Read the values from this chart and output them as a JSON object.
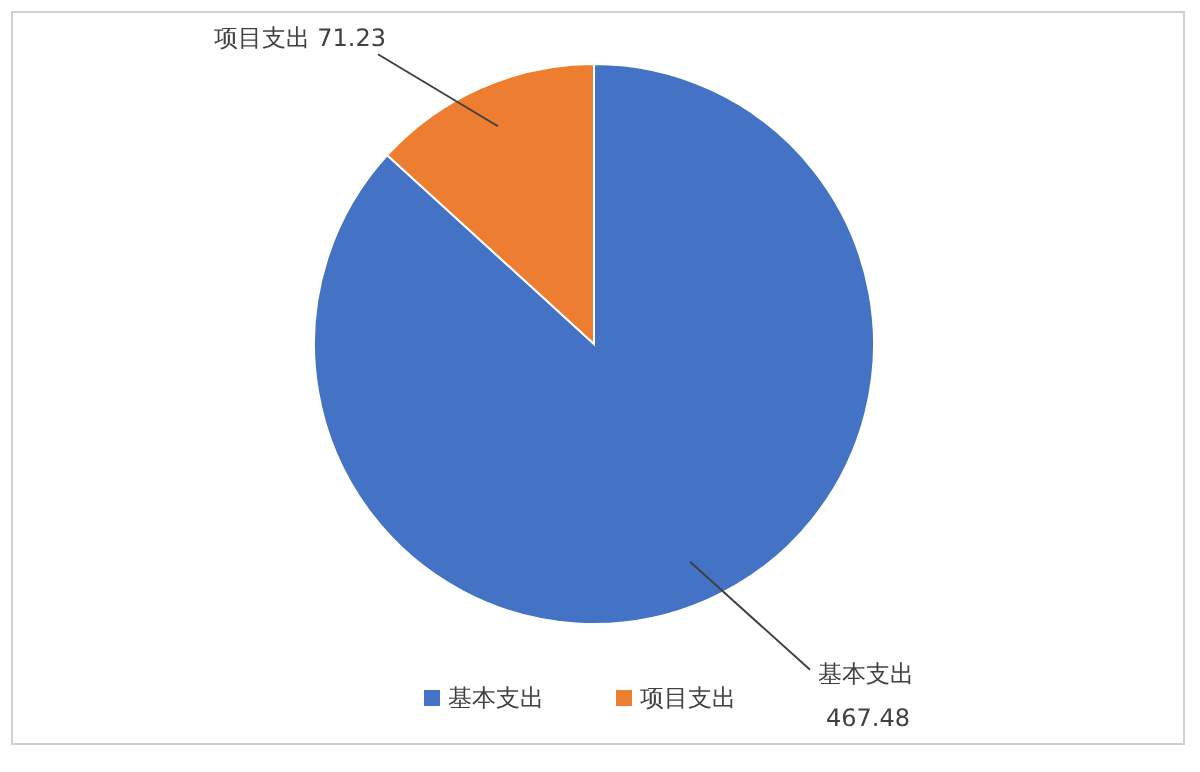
{
  "chart_data": {
    "type": "pie",
    "categories": [
      "基本支出",
      "项目支出"
    ],
    "values": [
      467.48,
      71.23
    ],
    "colors": [
      "#4472c4",
      "#ed7d31"
    ],
    "value_labels": [
      "467.48",
      "71.23"
    ],
    "legend": "bottom"
  }
}
